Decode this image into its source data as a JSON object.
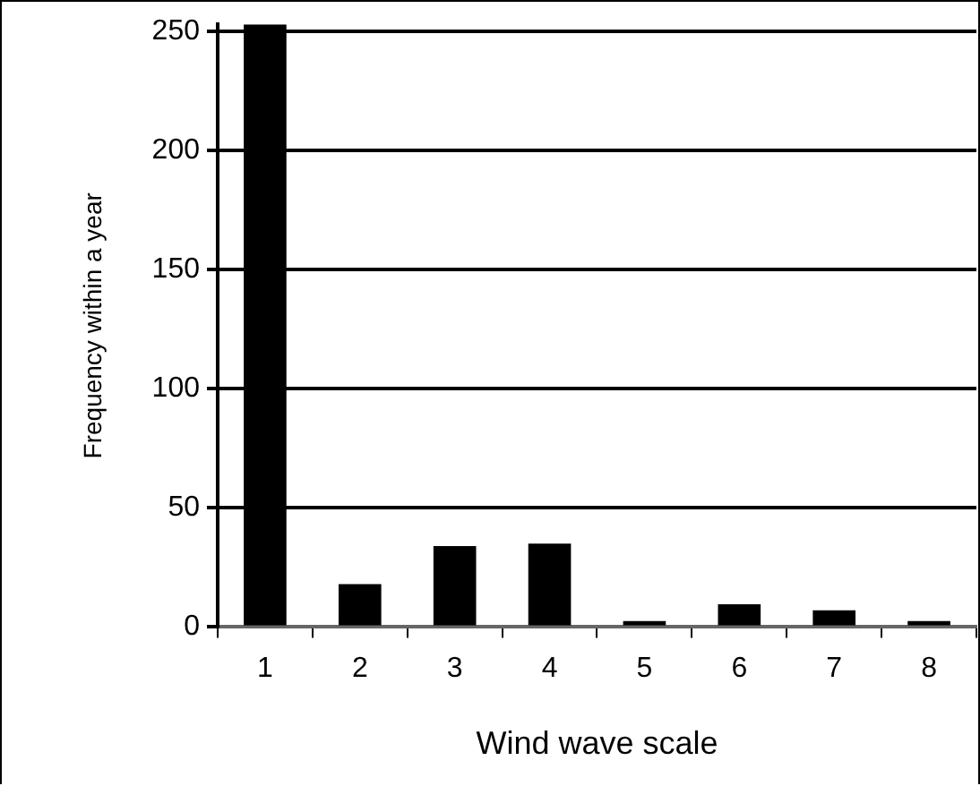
{
  "chart_data": {
    "type": "bar",
    "xlabel": "Wind wave scale",
    "ylabel": "Frequency within a year",
    "categories": [
      "1",
      "2",
      "3",
      "4",
      "5",
      "6",
      "7",
      "8"
    ],
    "values": [
      253,
      18,
      34,
      35,
      2.5,
      9.5,
      7,
      2.5
    ],
    "color": "#000000",
    "ylim": [
      0,
      253
    ],
    "yticks": [
      0,
      50,
      100,
      150,
      200,
      250
    ],
    "grid": "y",
    "legend": false
  }
}
